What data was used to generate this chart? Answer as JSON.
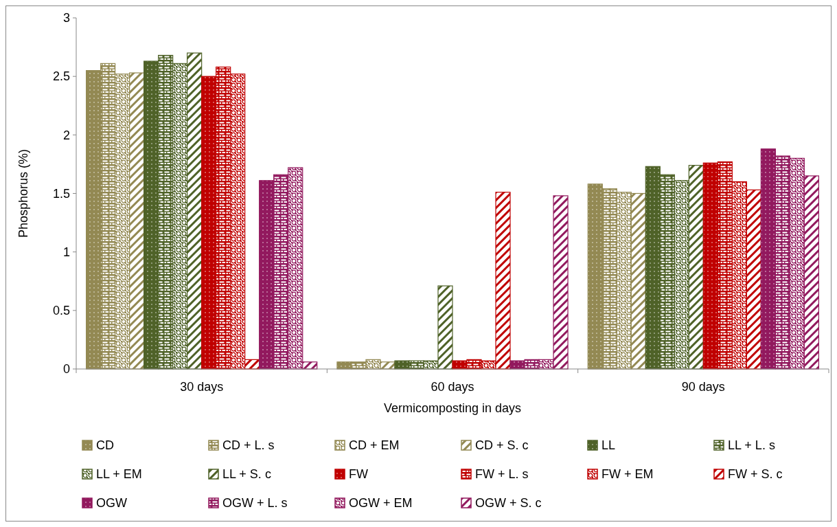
{
  "chart_data": {
    "type": "bar",
    "xlabel": "Vermicomposting in days",
    "ylabel": "Phosphorus (%)",
    "categories": [
      "30 days",
      "60 days",
      "90 days"
    ],
    "ylim": [
      0,
      3
    ],
    "yticks": [
      0,
      0.5,
      1,
      1.5,
      2,
      2.5,
      3
    ],
    "grid": false,
    "legend": "bottom",
    "series": [
      {
        "name": "CD",
        "color": "#938953",
        "values": [
          2.55,
          0.06,
          1.58
        ]
      },
      {
        "name": "CD + L. s",
        "color": "#938953",
        "values": [
          2.61,
          0.06,
          1.54
        ]
      },
      {
        "name": "CD + EM",
        "color": "#938953",
        "values": [
          2.52,
          0.08,
          1.51
        ]
      },
      {
        "name": "CD + S. c",
        "color": "#938953",
        "values": [
          2.53,
          0.06,
          1.5
        ]
      },
      {
        "name": "LL",
        "color": "#4f6228",
        "values": [
          2.63,
          0.07,
          1.73
        ]
      },
      {
        "name": "LL + L. s",
        "color": "#4f6228",
        "values": [
          2.68,
          0.07,
          1.66
        ]
      },
      {
        "name": "LL + EM",
        "color": "#4f6228",
        "values": [
          2.61,
          0.07,
          1.61
        ]
      },
      {
        "name": "LL + S. c",
        "color": "#4f6228",
        "values": [
          2.7,
          0.71,
          1.74
        ]
      },
      {
        "name": "FW",
        "color": "#c00000",
        "values": [
          2.5,
          0.07,
          1.76
        ]
      },
      {
        "name": "FW + L. s",
        "color": "#c00000",
        "values": [
          2.58,
          0.08,
          1.77
        ]
      },
      {
        "name": "FW + EM",
        "color": "#c00000",
        "values": [
          2.52,
          0.07,
          1.6
        ]
      },
      {
        "name": "FW + S. c",
        "color": "#c00000",
        "values": [
          0.08,
          1.51,
          1.53
        ]
      },
      {
        "name": "OGW",
        "color": "#92195e",
        "values": [
          1.61,
          0.07,
          1.88
        ]
      },
      {
        "name": "OGW + L. s",
        "color": "#92195e",
        "values": [
          1.66,
          0.08,
          1.82
        ]
      },
      {
        "name": "OGW + EM",
        "color": "#92195e",
        "values": [
          1.72,
          0.08,
          1.8
        ]
      },
      {
        "name": "OGW + S. c",
        "color": "#92195e",
        "values": [
          0.06,
          1.48,
          1.65
        ]
      }
    ]
  }
}
